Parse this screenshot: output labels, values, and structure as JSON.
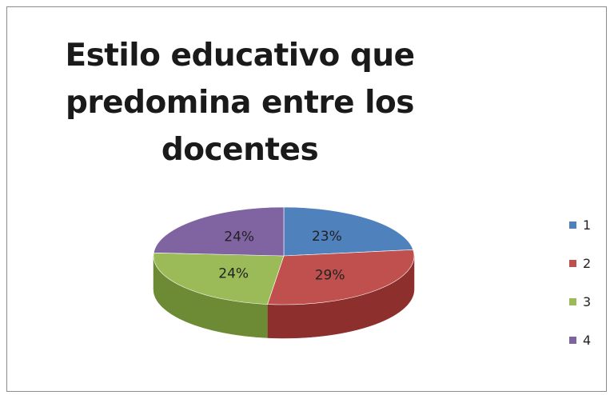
{
  "chart_data": {
    "type": "pie",
    "title": "Estilo educativo que predomina entre los docentes",
    "title_lines": [
      "Estilo educativo que",
      "predomina entre los",
      "docentes"
    ],
    "categories": [
      "1",
      "2",
      "3",
      "4"
    ],
    "values": [
      23,
      29,
      24,
      24
    ],
    "value_labels": [
      "23%",
      "29%",
      "24%",
      "24%"
    ],
    "colors": [
      "#4f81bd",
      "#c0504d",
      "#9bbb59",
      "#8064a2"
    ],
    "side_colors": [
      "#34598a",
      "#8c2f2d",
      "#6d8a35",
      "#5a427a"
    ],
    "legend_position": "right",
    "style": "3d-pie"
  }
}
